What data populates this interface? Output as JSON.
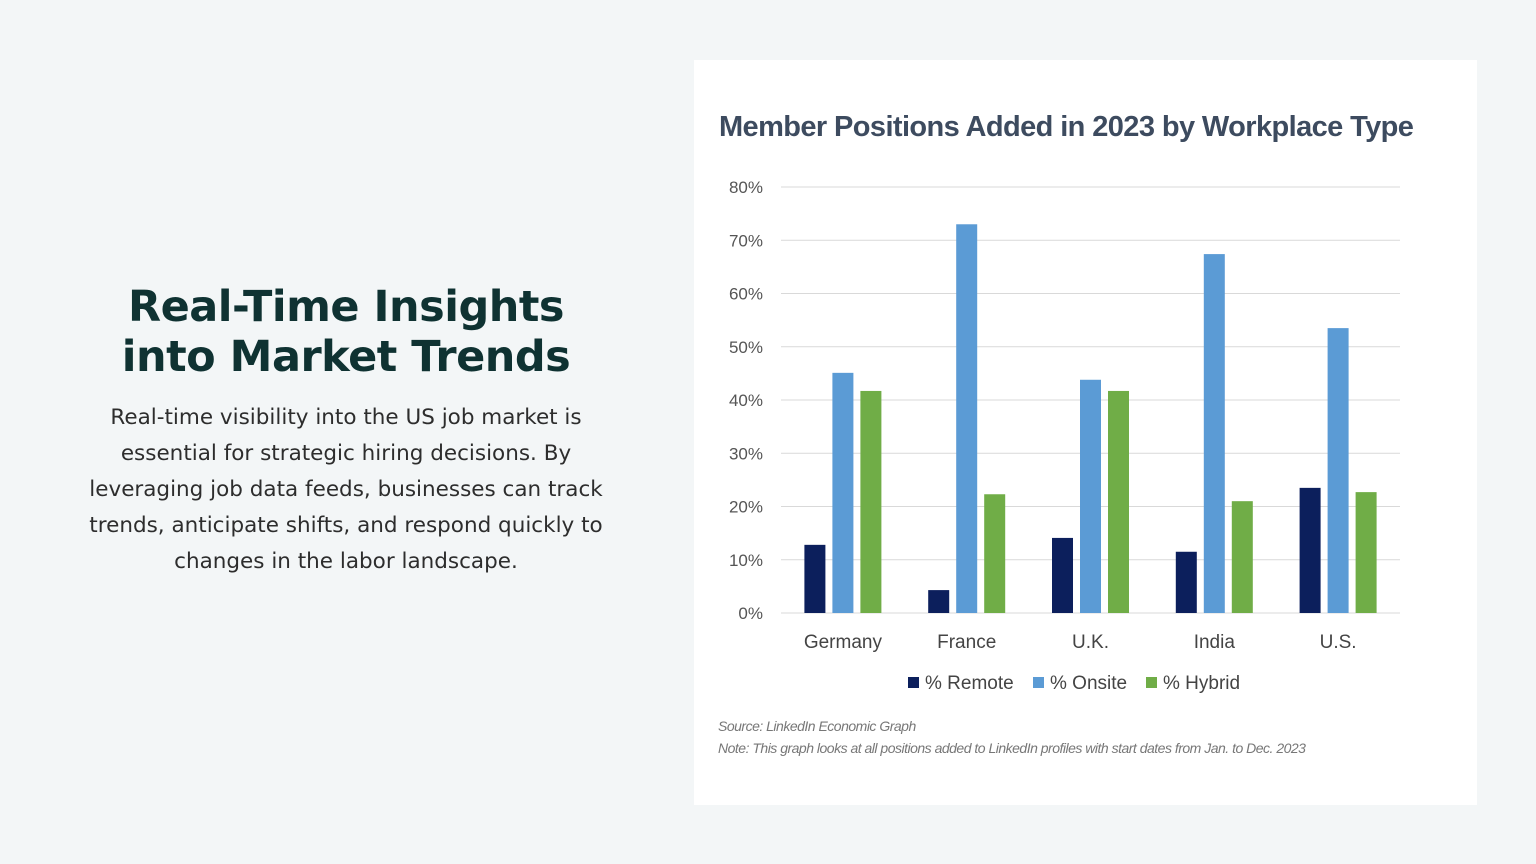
{
  "slide": {
    "heading_line1": "Real-Time Insights",
    "heading_line2": "into Market Trends",
    "body": "Real-time visibility into the US job market is essential for strategic hiring decisions. By leveraging job data feeds, businesses can track trends, anticipate shifts, and respond quickly to changes in the labor landscape."
  },
  "chart_data": {
    "type": "bar",
    "title": "Member Positions Added in 2023 by Workplace Type",
    "categories": [
      "Germany",
      "France",
      "U.K.",
      "India",
      "U.S."
    ],
    "series": [
      {
        "name": "% Remote",
        "color": "#0c1f5c",
        "values": [
          12.8,
          4.3,
          14.1,
          11.5,
          23.5
        ]
      },
      {
        "name": "% Onsite",
        "color": "#5b9bd5",
        "values": [
          45.1,
          73.0,
          43.8,
          67.4,
          53.5
        ]
      },
      {
        "name": "% Hybrid",
        "color": "#70ad47",
        "values": [
          41.7,
          22.3,
          41.7,
          21.0,
          22.7
        ]
      }
    ],
    "ylim": [
      0,
      80
    ],
    "yticks": [
      "0%",
      "10%",
      "20%",
      "30%",
      "40%",
      "50%",
      "60%",
      "70%",
      "80%"
    ],
    "grid": true,
    "legend": "bottom",
    "source": "Source: LinkedIn Economic Graph",
    "note": "Note: This graph looks at all positions added to LinkedIn profiles with start dates from Jan. to Dec. 2023"
  }
}
